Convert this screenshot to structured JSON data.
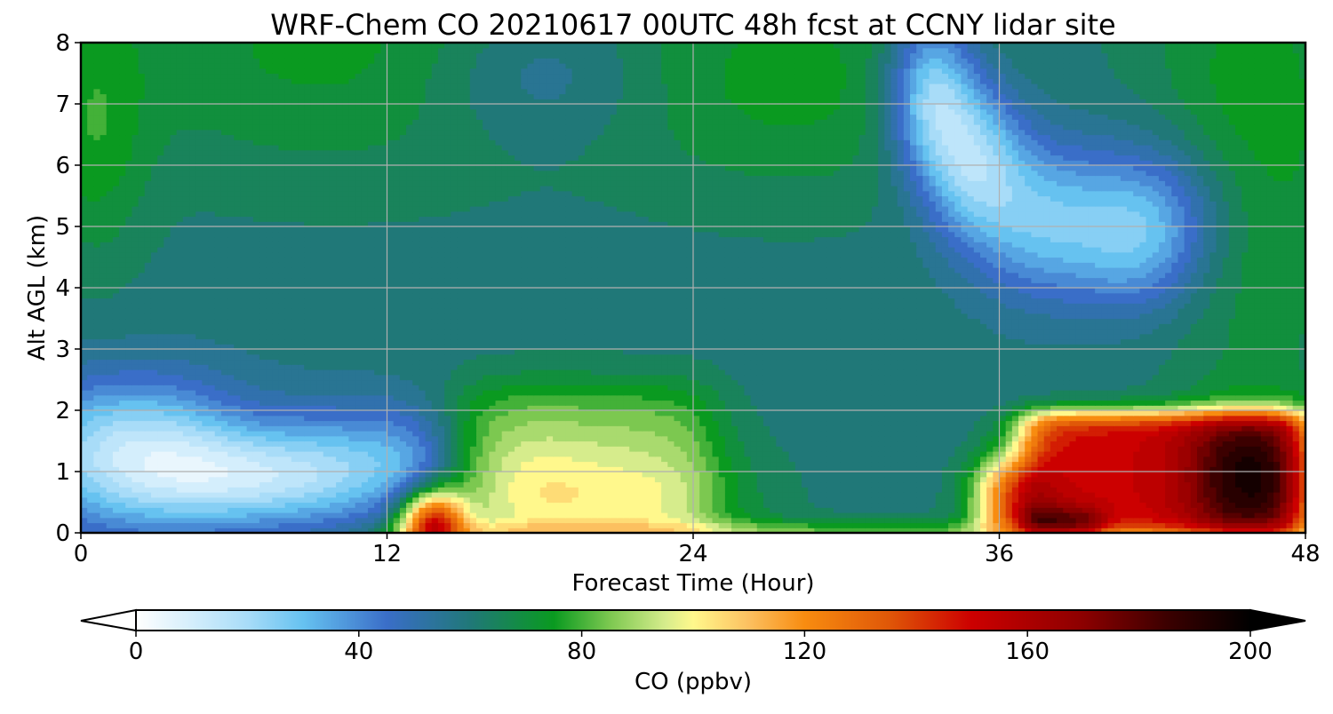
{
  "chart_data": {
    "type": "heatmap",
    "title": "WRF-Chem CO  20210617 00UTC 48h fcst at CCNY lidar site",
    "xlabel": "Forecast Time (Hour)",
    "ylabel": "Alt AGL (km)",
    "xlim": [
      0,
      48
    ],
    "ylim": [
      0,
      8
    ],
    "xticks": [
      0,
      12,
      24,
      36,
      48
    ],
    "yticks": [
      0,
      1,
      2,
      3,
      4,
      5,
      6,
      7,
      8
    ],
    "grid": true,
    "colorbar": {
      "label": "CO  (ppbv)",
      "min": 0,
      "max": 200,
      "ticks": [
        0,
        40,
        80,
        120,
        160,
        200
      ],
      "extend": "both",
      "orientation": "horizontal",
      "stops": [
        {
          "v": 0,
          "c": "#ffffff"
        },
        {
          "v": 20,
          "c": "#a8dcf8"
        },
        {
          "v": 30,
          "c": "#66c2f0"
        },
        {
          "v": 45,
          "c": "#3a6ec8"
        },
        {
          "v": 60,
          "c": "#207878"
        },
        {
          "v": 75,
          "c": "#0a9a20"
        },
        {
          "v": 85,
          "c": "#7cc850"
        },
        {
          "v": 95,
          "c": "#d6ec8c"
        },
        {
          "v": 100,
          "c": "#fff88c"
        },
        {
          "v": 110,
          "c": "#fcc060"
        },
        {
          "v": 120,
          "c": "#f88c10"
        },
        {
          "v": 135,
          "c": "#e05808"
        },
        {
          "v": 150,
          "c": "#cc0000"
        },
        {
          "v": 170,
          "c": "#8c0000"
        },
        {
          "v": 185,
          "c": "#3c0000"
        },
        {
          "v": 200,
          "c": "#000000"
        }
      ]
    },
    "fields": {
      "background": 60,
      "features": [
        {
          "name": "upper-green",
          "kind": "gauss",
          "x": 10,
          "y": 8,
          "sx": 7,
          "sy": 1.6,
          "a": 14
        },
        {
          "name": "upper-green-2",
          "kind": "gauss",
          "x": 28,
          "y": 7.4,
          "sx": 5,
          "sy": 1.4,
          "a": 14
        },
        {
          "name": "upper-right-green",
          "kind": "gauss",
          "x": 46,
          "y": 6.5,
          "sx": 3,
          "sy": 3,
          "a": 16
        },
        {
          "name": "upper-left-green",
          "kind": "gauss",
          "x": 0.5,
          "y": 6.5,
          "sx": 1.5,
          "sy": 1.5,
          "a": 14
        },
        {
          "name": "mid-blue-patch",
          "kind": "gauss",
          "x": 18,
          "y": 7.5,
          "sx": 3,
          "sy": 0.8,
          "a": -12
        },
        {
          "name": "blue-streak-1",
          "kind": "gauss",
          "x": 33.3,
          "y": 7.2,
          "sx": 1.2,
          "sy": 0.9,
          "a": -38
        },
        {
          "name": "blue-streak-2",
          "kind": "gauss",
          "x": 35,
          "y": 6.1,
          "sx": 1.4,
          "sy": 0.9,
          "a": -36
        },
        {
          "name": "blue-streak-3",
          "kind": "gauss",
          "x": 37.5,
          "y": 5.1,
          "sx": 1.8,
          "sy": 0.9,
          "a": -26
        },
        {
          "name": "blue-streak-4",
          "kind": "gauss",
          "x": 41.5,
          "y": 4.7,
          "sx": 2.0,
          "sy": 0.8,
          "a": -28
        },
        {
          "name": "blue-streak-5",
          "kind": "gauss",
          "x": 42,
          "y": 5.6,
          "sx": 2.5,
          "sy": 0.8,
          "a": -14
        },
        {
          "name": "left-light-blue",
          "kind": "gauss",
          "x": 2,
          "y": 1.3,
          "sx": 3.2,
          "sy": 0.85,
          "a": -44
        },
        {
          "name": "left-light-blue-2",
          "kind": "gauss",
          "x": 7,
          "y": 0.9,
          "sx": 3.0,
          "sy": 0.55,
          "a": -34
        },
        {
          "name": "left-light-blue-3",
          "kind": "gauss",
          "x": 10.5,
          "y": 1.2,
          "sx": 2.0,
          "sy": 0.7,
          "a": -18
        },
        {
          "name": "mid-blue-12",
          "kind": "gauss",
          "x": 13,
          "y": 1.2,
          "sx": 1.3,
          "sy": 0.6,
          "a": -14
        },
        {
          "name": "central-plume",
          "kind": "box",
          "x0": 14.8,
          "x1": 24.8,
          "y0": 0,
          "y1": 2.4,
          "ex": 0.7,
          "ey": 0.25,
          "a": 24
        },
        {
          "name": "central-plume-core",
          "kind": "gauss",
          "x": 21.5,
          "y": 0.4,
          "sx": 3.5,
          "sy": 0.8,
          "a": 18
        },
        {
          "name": "central-plume-core-2",
          "kind": "gauss",
          "x": 17.5,
          "y": 0.7,
          "sx": 1.8,
          "sy": 0.8,
          "a": 10
        },
        {
          "name": "surface-peak-14",
          "kind": "gauss",
          "x": 13.8,
          "y": 0.2,
          "sx": 0.9,
          "sy": 0.35,
          "a": 80
        },
        {
          "name": "surface-layer",
          "kind": "box",
          "x0": 12,
          "x1": 36,
          "y0": 0,
          "y1": 0.1,
          "ex": 0.8,
          "ey": 0.08,
          "a": 40
        },
        {
          "name": "right-polluted-layer",
          "kind": "box",
          "x0": 37,
          "x1": 48,
          "y0": 0,
          "y1": 1.95,
          "ex": 0.5,
          "ey": 0.1,
          "a": 90
        },
        {
          "name": "right-polluted-rise",
          "kind": "box",
          "x0": 35.3,
          "x1": 37.5,
          "y0": 0,
          "y1": 1.1,
          "ex": 0.5,
          "ey": 0.2,
          "a": 80
        },
        {
          "name": "right-black-core",
          "kind": "box",
          "x0": 44,
          "x1": 48,
          "y0": 0,
          "y1": 1.8,
          "ex": 0.8,
          "ey": 0.3,
          "a": 55
        },
        {
          "name": "right-black-low",
          "kind": "box",
          "x0": 37,
          "x1": 40,
          "y0": 0,
          "y1": 0.35,
          "ex": 0.3,
          "ey": 0.1,
          "a": 45
        }
      ]
    }
  }
}
